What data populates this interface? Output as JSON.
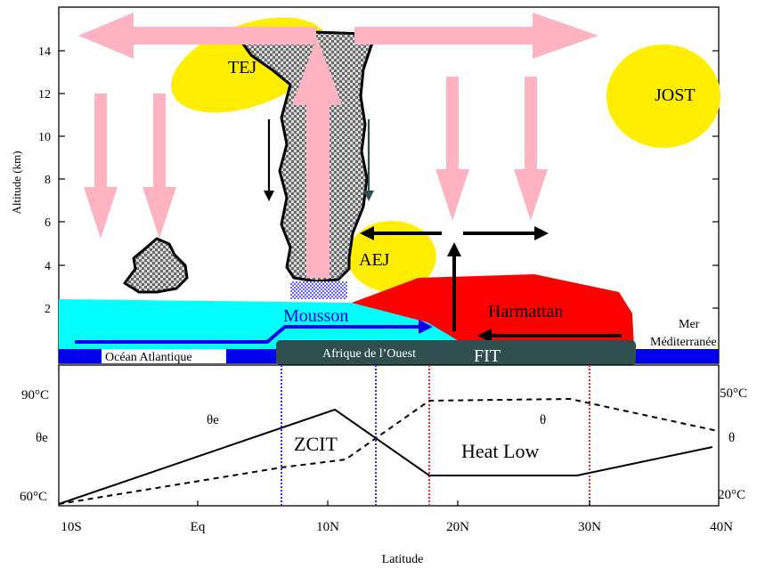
{
  "top_panel": {
    "y_axis_label": "Altitude (km)",
    "y_ticks": [
      "14",
      "12",
      "10",
      "8",
      "6",
      "4",
      "2"
    ],
    "labels": {
      "tej": "TEJ",
      "jost": "JOST",
      "aej": "AEJ",
      "mousson": "Mousson",
      "harmattan": "Harmattan",
      "mer_line1": "Mer",
      "mer_line2": "Méditerranée",
      "ocean": "Océan Atlantique",
      "afrique": "Afrique de l’Ouest",
      "fit": "FIT"
    },
    "colors": {
      "flow_arrows": "#ffb3c0",
      "jets": "#ffee00",
      "monsoon": "#00ffff",
      "monsoon_arrow": "#0000ee",
      "harmattan": "#ff0000",
      "ocean": "#0000ee",
      "land": "#2f4f4f",
      "convection": "#555555"
    }
  },
  "bottom_panel": {
    "left_ticks": [
      "90°C",
      "θe",
      "60°C"
    ],
    "right_ticks": [
      "50°C",
      "θ",
      "20°C"
    ],
    "labels": {
      "theta_e": "θe",
      "theta": "θ",
      "zcit": "ZCIT",
      "heat_low": "Heat Low"
    },
    "x_ticks": [
      "10S",
      "Eq",
      "10N",
      "20N",
      "30N",
      "40N"
    ],
    "x_axis_label": "Latitude",
    "colors": {
      "zcit_bounds": "#2a2aff",
      "heat_low_bounds": "#ff2222"
    }
  }
}
